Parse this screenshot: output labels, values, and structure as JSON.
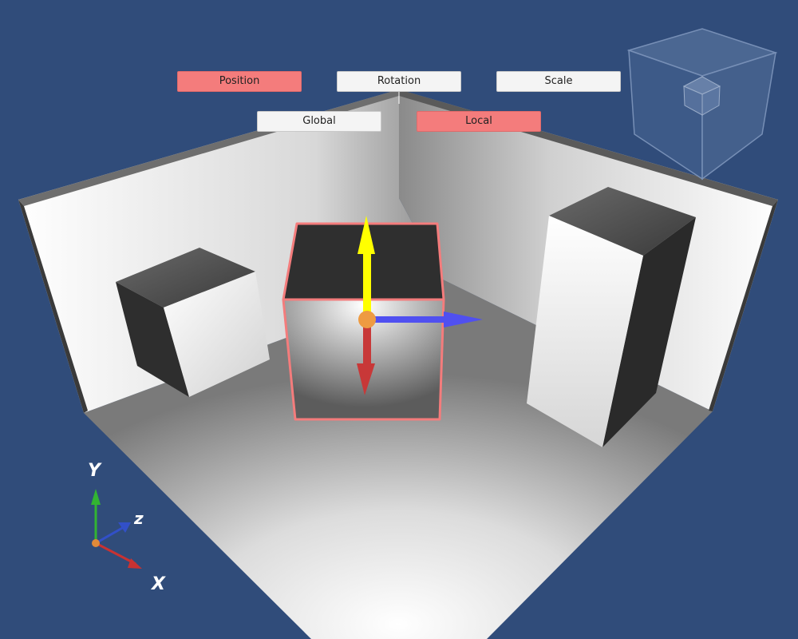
{
  "toolbar": {
    "transform_modes": [
      {
        "label": "Position",
        "active": true
      },
      {
        "label": "Rotation",
        "active": false
      },
      {
        "label": "Scale",
        "active": false
      }
    ],
    "coordinate_spaces": [
      {
        "label": "Global",
        "active": false
      },
      {
        "label": "Local",
        "active": true
      }
    ]
  },
  "axis_widget": {
    "labels": {
      "x": "X",
      "y": "Y",
      "z": "z"
    }
  },
  "colors": {
    "background": "#304c7a",
    "active_button": "#f47c7c",
    "inactive_button": "#f4f4f4",
    "selection_outline": "#f47c7c",
    "gizmo_x": "#c83838",
    "gizmo_y": "#ffff00",
    "gizmo_z": "#5050f0",
    "axis_x": "#c83232",
    "axis_y": "#32b432",
    "axis_z": "#3250c8"
  },
  "icons": [
    "view-cube-icon",
    "axis-orientation-icon",
    "translate-gizmo-icon"
  ]
}
